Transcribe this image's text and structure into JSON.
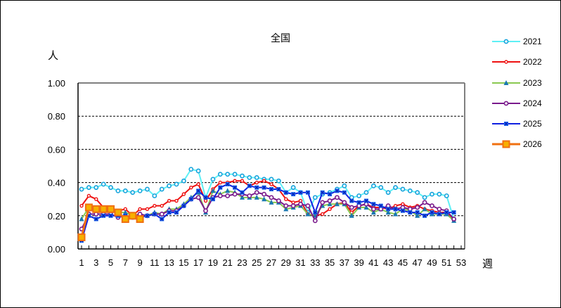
{
  "chart_data": {
    "type": "line",
    "title": "全国",
    "xlabel": "週",
    "ylabel": "人",
    "ylim": [
      0,
      1.0
    ],
    "xlim": [
      1,
      53
    ],
    "yticks": [
      "0.00",
      "0.20",
      "0.40",
      "0.60",
      "0.80",
      "1.00"
    ],
    "xticks": [
      "1",
      "3",
      "5",
      "7",
      "9",
      "11",
      "13",
      "15",
      "17",
      "19",
      "21",
      "23",
      "25",
      "27",
      "29",
      "31",
      "33",
      "35",
      "37",
      "39",
      "41",
      "43",
      "45",
      "47",
      "49",
      "51",
      "53"
    ],
    "grid": "horizontal dashed",
    "legend_position": "right",
    "series": [
      {
        "name": "2021",
        "color": "#5ef0f5",
        "marker": "circle",
        "markerColor": "#13a3dc",
        "values": [
          0.36,
          0.37,
          0.37,
          0.39,
          0.37,
          0.35,
          0.35,
          0.34,
          0.35,
          0.36,
          0.32,
          0.36,
          0.38,
          0.39,
          0.41,
          0.48,
          0.47,
          0.31,
          0.42,
          0.45,
          0.45,
          0.45,
          0.44,
          0.43,
          0.43,
          0.42,
          0.42,
          0.41,
          0.34,
          0.37,
          0.34,
          0.22,
          0.31,
          0.33,
          0.34,
          0.36,
          0.38,
          0.31,
          0.32,
          0.34,
          0.38,
          0.37,
          0.34,
          0.37,
          0.36,
          0.35,
          0.34,
          0.31,
          0.33,
          0.33,
          0.32,
          0.18
        ]
      },
      {
        "name": "2022",
        "color": "#ee1111",
        "marker": "circle-small",
        "markerColor": "#ee1111",
        "values": [
          0.26,
          0.32,
          0.3,
          0.25,
          0.23,
          0.23,
          0.24,
          0.2,
          0.24,
          0.24,
          0.26,
          0.26,
          0.29,
          0.29,
          0.33,
          0.37,
          0.39,
          0.29,
          0.36,
          0.4,
          0.4,
          0.41,
          0.41,
          0.38,
          0.4,
          0.41,
          0.39,
          0.36,
          0.3,
          0.28,
          0.29,
          0.21,
          0.2,
          0.21,
          0.24,
          0.27,
          0.28,
          0.22,
          0.26,
          0.27,
          0.25,
          0.25,
          0.24,
          0.26,
          0.27,
          0.25,
          0.26,
          0.24,
          0.23,
          0.22,
          0.22,
          0.17
        ]
      },
      {
        "name": "2023",
        "color": "#8ac850",
        "marker": "triangle",
        "markerColor": "#1a78b0",
        "values": [
          0.18,
          0.25,
          0.24,
          0.24,
          0.24,
          0.22,
          0.22,
          0.2,
          0.21,
          0.2,
          0.22,
          0.21,
          0.24,
          0.24,
          0.27,
          0.31,
          0.34,
          0.22,
          0.35,
          0.33,
          0.35,
          0.34,
          0.31,
          0.31,
          0.31,
          0.3,
          0.28,
          0.28,
          0.24,
          0.25,
          0.26,
          0.21,
          0.2,
          0.26,
          0.27,
          0.27,
          0.27,
          0.2,
          0.25,
          0.25,
          0.22,
          0.24,
          0.22,
          0.21,
          0.24,
          0.23,
          0.2,
          0.24,
          0.21,
          0.21,
          0.21,
          0.17
        ]
      },
      {
        "name": "2024",
        "color": "#7a1a8c",
        "marker": "circle",
        "markerColor": "#7a1a8c",
        "values": [
          0.12,
          0.21,
          0.21,
          0.21,
          0.21,
          0.19,
          0.2,
          0.19,
          0.21,
          0.2,
          0.21,
          0.21,
          0.23,
          0.23,
          0.26,
          0.3,
          0.31,
          0.23,
          0.31,
          0.32,
          0.32,
          0.33,
          0.33,
          0.32,
          0.34,
          0.33,
          0.31,
          0.29,
          0.26,
          0.26,
          0.27,
          0.26,
          0.17,
          0.28,
          0.29,
          0.31,
          0.28,
          0.25,
          0.26,
          0.27,
          0.24,
          0.24,
          0.26,
          0.24,
          0.25,
          0.24,
          0.25,
          0.28,
          0.26,
          0.24,
          0.23,
          0.18
        ]
      },
      {
        "name": "2025",
        "color": "#1020e0",
        "marker": "x-square",
        "markerColor": "#1a6af0",
        "values": [
          0.05,
          0.2,
          0.18,
          0.2,
          0.2,
          0.2,
          0.2,
          0.19,
          0.19,
          0.2,
          0.21,
          0.18,
          0.22,
          0.22,
          0.26,
          0.3,
          0.35,
          0.31,
          0.3,
          0.37,
          0.39,
          0.37,
          0.34,
          0.38,
          0.37,
          0.37,
          0.36,
          0.36,
          0.34,
          0.33,
          0.34,
          0.34,
          0.22,
          0.34,
          0.33,
          0.35,
          0.34,
          0.29,
          0.28,
          0.29,
          0.27,
          0.26,
          0.24,
          0.24,
          0.23,
          0.22,
          0.22,
          0.2,
          0.22,
          0.21,
          0.22,
          0.22
        ]
      },
      {
        "name": "2026",
        "color": "#f07010",
        "marker": "square",
        "markerColor": "#f7b000",
        "values": [
          0.07,
          0.25,
          0.24,
          0.24,
          0.24,
          0.22,
          0.18,
          0.2,
          0.18
        ]
      }
    ]
  },
  "legend": {
    "items": [
      "2021",
      "2022",
      "2023",
      "2024",
      "2025",
      "2026"
    ]
  },
  "labels": {
    "title": "全国",
    "y_unit": "人",
    "x_unit": "週"
  }
}
